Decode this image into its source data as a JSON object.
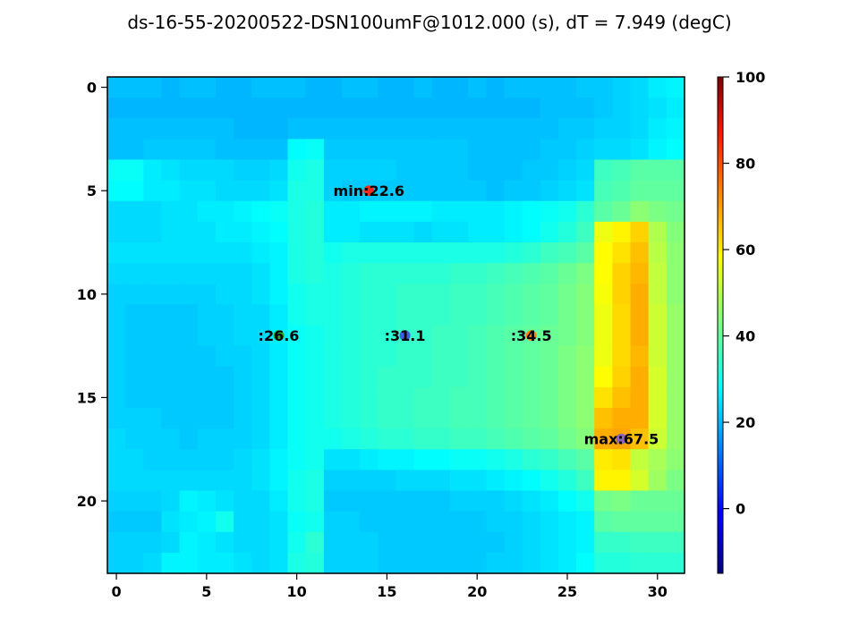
{
  "chart_data": {
    "type": "heatmap",
    "title": "ds-16-55-20200522-DSN100umF@1012.000 (s), dT = 7.949 (degC)",
    "colormap": "jet",
    "colorbar": {
      "vmin": -15,
      "vmax": 100,
      "ticks": [
        0,
        20,
        40,
        60,
        80,
        100
      ]
    },
    "x_ticks": [
      0,
      5,
      10,
      15,
      20,
      25,
      30
    ],
    "y_ticks": [
      0,
      5,
      10,
      15,
      20
    ],
    "grid_size": {
      "cols": 32,
      "rows": 24
    },
    "grid": [
      [
        21,
        21,
        21,
        20,
        21,
        21,
        20,
        20,
        21,
        21,
        21,
        20,
        20,
        21,
        21,
        20,
        20,
        21,
        20,
        20,
        21,
        20,
        21,
        21,
        21,
        21,
        22,
        22,
        23,
        24,
        26,
        27
      ],
      [
        20,
        20,
        20,
        20,
        20,
        20,
        20,
        20,
        20,
        20,
        20,
        20,
        20,
        20,
        20,
        20,
        20,
        20,
        20,
        20,
        20,
        20,
        20,
        20,
        21,
        21,
        21,
        22,
        23,
        24,
        25,
        26
      ],
      [
        21,
        21,
        21,
        21,
        21,
        21,
        21,
        20,
        20,
        20,
        21,
        21,
        21,
        21,
        21,
        21,
        21,
        21,
        21,
        21,
        21,
        21,
        21,
        21,
        21,
        22,
        22,
        23,
        23,
        24,
        26,
        27
      ],
      [
        21,
        21,
        22,
        22,
        22,
        22,
        21,
        21,
        21,
        21,
        28,
        29,
        22,
        22,
        22,
        22,
        22,
        22,
        22,
        22,
        21,
        21,
        21,
        21,
        22,
        22,
        23,
        24,
        24,
        25,
        27,
        28
      ],
      [
        29,
        29,
        26,
        25,
        24,
        24,
        24,
        23,
        23,
        24,
        30,
        31,
        23,
        23,
        23,
        23,
        22,
        22,
        22,
        22,
        21,
        21,
        21,
        22,
        22,
        23,
        24,
        35,
        36,
        38,
        38,
        38
      ],
      [
        28,
        28,
        26,
        26,
        25,
        25,
        24,
        24,
        24,
        25,
        31,
        31,
        23,
        22,
        22,
        22,
        22,
        22,
        22,
        22,
        22,
        21,
        22,
        22,
        23,
        24,
        25,
        36,
        37,
        39,
        39,
        39
      ],
      [
        24,
        24,
        24,
        25,
        25,
        26,
        26,
        27,
        28,
        29,
        31,
        32,
        26,
        26,
        27,
        27,
        27,
        27,
        26,
        26,
        26,
        26,
        27,
        28,
        29,
        30,
        33,
        38,
        40,
        44,
        42,
        41
      ],
      [
        24,
        24,
        24,
        25,
        25,
        25,
        26,
        26,
        27,
        28,
        31,
        32,
        26,
        26,
        25,
        25,
        25,
        24,
        25,
        25,
        26,
        26,
        27,
        28,
        30,
        32,
        35,
        55,
        58,
        62,
        48,
        43
      ],
      [
        25,
        25,
        25,
        25,
        25,
        25,
        25,
        25,
        26,
        27,
        31,
        32,
        30,
        31,
        31,
        31,
        31,
        31,
        31,
        31,
        31,
        31,
        32,
        33,
        35,
        36,
        38,
        57,
        60,
        64,
        49,
        44
      ],
      [
        24,
        24,
        24,
        24,
        24,
        24,
        24,
        24,
        25,
        27,
        31,
        32,
        31,
        32,
        33,
        33,
        33,
        33,
        33,
        34,
        34,
        35,
        36,
        37,
        38,
        40,
        42,
        57,
        62,
        65,
        50,
        44
      ],
      [
        23,
        23,
        23,
        23,
        23,
        23,
        24,
        24,
        25,
        27,
        30,
        31,
        31,
        32,
        33,
        33,
        34,
        34,
        34,
        35,
        35,
        36,
        37,
        38,
        39,
        41,
        43,
        56,
        62,
        66,
        50,
        44
      ],
      [
        23,
        22,
        22,
        22,
        22,
        23,
        23,
        24,
        24,
        26,
        30,
        31,
        31,
        32,
        33,
        33,
        34,
        34,
        34,
        35,
        35,
        36,
        37,
        38,
        39,
        41,
        43,
        55,
        61,
        66,
        51,
        45
      ],
      [
        23,
        22,
        22,
        22,
        22,
        23,
        23,
        24,
        24,
        26,
        29,
        30,
        31,
        32,
        33,
        33,
        34,
        34,
        35,
        35,
        36,
        37,
        38,
        39,
        40,
        41,
        43,
        55,
        61,
        66,
        51,
        45
      ],
      [
        23,
        22,
        22,
        22,
        22,
        22,
        23,
        23,
        24,
        26,
        29,
        30,
        31,
        32,
        33,
        33,
        34,
        34,
        35,
        35,
        36,
        37,
        38,
        39,
        40,
        42,
        44,
        55,
        61,
        65,
        51,
        45
      ],
      [
        23,
        22,
        22,
        22,
        22,
        22,
        22,
        23,
        24,
        26,
        29,
        30,
        31,
        32,
        33,
        34,
        34,
        34,
        35,
        35,
        36,
        37,
        38,
        39,
        40,
        42,
        44,
        57,
        62,
        66,
        52,
        45
      ],
      [
        23,
        22,
        22,
        22,
        22,
        22,
        22,
        23,
        24,
        26,
        29,
        30,
        31,
        32,
        33,
        34,
        34,
        35,
        35,
        36,
        36,
        37,
        38,
        39,
        40,
        42,
        44,
        60,
        64,
        66,
        52,
        45
      ],
      [
        23,
        23,
        23,
        22,
        22,
        22,
        22,
        23,
        24,
        26,
        29,
        30,
        31,
        32,
        33,
        34,
        34,
        35,
        35,
        36,
        36,
        37,
        38,
        39,
        40,
        42,
        44,
        64,
        66,
        66,
        52,
        45
      ],
      [
        24,
        23,
        23,
        23,
        22,
        23,
        23,
        23,
        24,
        26,
        29,
        30,
        30,
        31,
        32,
        33,
        33,
        34,
        34,
        35,
        35,
        36,
        37,
        38,
        39,
        41,
        43,
        66,
        67,
        64,
        51,
        45
      ],
      [
        24,
        24,
        23,
        23,
        23,
        23,
        23,
        24,
        25,
        27,
        29,
        30,
        25,
        25,
        26,
        27,
        27,
        28,
        28,
        29,
        29,
        30,
        31,
        33,
        34,
        36,
        38,
        59,
        60,
        50,
        47,
        44
      ],
      [
        24,
        24,
        24,
        24,
        24,
        24,
        24,
        24,
        25,
        27,
        30,
        31,
        23,
        23,
        23,
        23,
        24,
        24,
        24,
        25,
        25,
        26,
        27,
        28,
        30,
        32,
        35,
        58,
        58,
        52,
        46,
        42
      ],
      [
        23,
        23,
        23,
        24,
        27,
        26,
        25,
        24,
        24,
        26,
        30,
        31,
        22,
        22,
        22,
        22,
        22,
        22,
        22,
        23,
        23,
        23,
        24,
        25,
        26,
        28,
        30,
        41,
        42,
        40,
        40,
        40
      ],
      [
        22,
        22,
        22,
        25,
        26,
        27,
        30,
        24,
        24,
        25,
        29,
        30,
        23,
        23,
        22,
        22,
        22,
        22,
        22,
        22,
        22,
        23,
        23,
        24,
        25,
        26,
        27,
        38,
        39,
        39,
        39,
        39
      ],
      [
        23,
        23,
        23,
        24,
        27,
        26,
        25,
        24,
        24,
        25,
        30,
        33,
        23,
        23,
        23,
        22,
        22,
        22,
        22,
        22,
        22,
        22,
        23,
        24,
        25,
        26,
        27,
        34,
        34,
        35,
        35,
        35
      ],
      [
        23,
        23,
        24,
        27,
        27,
        26,
        26,
        25,
        24,
        25,
        31,
        32,
        23,
        23,
        23,
        22,
        22,
        22,
        22,
        22,
        22,
        23,
        23,
        24,
        25,
        26,
        28,
        32,
        32,
        33,
        33,
        33
      ]
    ],
    "annotations": [
      {
        "label": "min:22.6",
        "x": 14,
        "y": 5,
        "marker_color": "#ff2a1c"
      },
      {
        "label": ":26.6",
        "x": 9,
        "y": 12,
        "marker_color": "#2fa82f"
      },
      {
        "label": ":31.1",
        "x": 16,
        "y": 12,
        "marker_color": "#3f5fe0"
      },
      {
        "label": ":34.5",
        "x": 23,
        "y": 12,
        "marker_color": "#ff7f0e"
      },
      {
        "label": "max:67.5",
        "x": 28,
        "y": 17,
        "marker_color": "#8e63bf"
      }
    ]
  }
}
